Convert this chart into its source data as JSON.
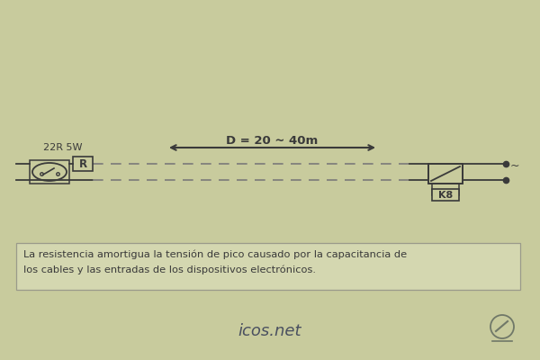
{
  "bg_color": "#c8cb9d",
  "line_color": "#3a3a3a",
  "dash_color": "#7a7a7a",
  "title": "icos.net",
  "label_22R5W": "22R 5W",
  "label_R": "R",
  "label_D": "D = 20 ~ 40m",
  "label_K8": "K8",
  "note_text": "La resistencia amortigua la tensión de pico causado por la capacitancia de\nlos cables y las entradas de los dispositivos electrónicos.",
  "note_bg": "#d4d7b0",
  "note_border": "#9a9a8a",
  "fig_width": 6.0,
  "fig_height": 4.0,
  "dpi": 100,
  "logo_color": "#707868"
}
